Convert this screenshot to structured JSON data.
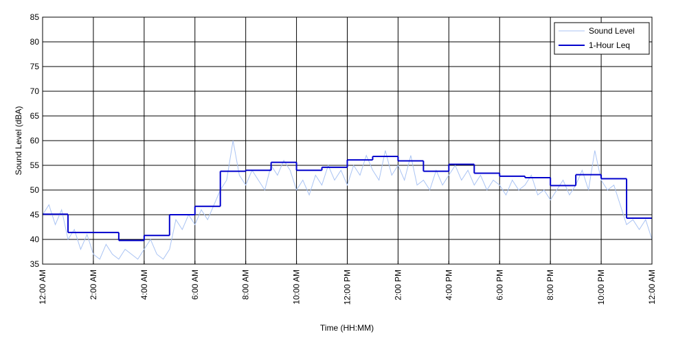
{
  "chart_data": {
    "type": "line",
    "xlabel": "Time (HH:MM)",
    "ylabel": "Sound Level (dBA)",
    "xlim": [
      0,
      24
    ],
    "ylim": [
      35,
      85
    ],
    "xticks": [
      {
        "value": 0,
        "label": "12:00 AM"
      },
      {
        "value": 2,
        "label": "2:00 AM"
      },
      {
        "value": 4,
        "label": "4:00 AM"
      },
      {
        "value": 6,
        "label": "6:00 AM"
      },
      {
        "value": 8,
        "label": "8:00 AM"
      },
      {
        "value": 10,
        "label": "10:00 AM"
      },
      {
        "value": 12,
        "label": "12:00 PM"
      },
      {
        "value": 14,
        "label": "2:00 PM"
      },
      {
        "value": 16,
        "label": "4:00 PM"
      },
      {
        "value": 18,
        "label": "6:00 PM"
      },
      {
        "value": 20,
        "label": "8:00 PM"
      },
      {
        "value": 22,
        "label": "10:00 PM"
      },
      {
        "value": 24,
        "label": "12:00 AM"
      }
    ],
    "yticks": [
      35,
      40,
      45,
      50,
      55,
      60,
      65,
      70,
      75,
      80,
      85
    ],
    "grid": true,
    "legend": "upper right",
    "series": [
      {
        "name": "Sound Level",
        "color": "#a9c3f3",
        "style": "line",
        "x": [
          0,
          0.25,
          0.5,
          0.75,
          1,
          1.25,
          1.5,
          1.75,
          2,
          2.25,
          2.5,
          2.75,
          3,
          3.25,
          3.5,
          3.75,
          4,
          4.25,
          4.5,
          4.75,
          5,
          5.25,
          5.5,
          5.75,
          6,
          6.25,
          6.5,
          6.75,
          7,
          7.25,
          7.5,
          7.75,
          8,
          8.25,
          8.5,
          8.75,
          9,
          9.25,
          9.5,
          9.75,
          10,
          10.25,
          10.5,
          10.75,
          11,
          11.25,
          11.5,
          11.75,
          12,
          12.25,
          12.5,
          12.75,
          13,
          13.25,
          13.5,
          13.75,
          14,
          14.25,
          14.5,
          14.75,
          15,
          15.25,
          15.5,
          15.75,
          16,
          16.25,
          16.5,
          16.75,
          17,
          17.25,
          17.5,
          17.75,
          18,
          18.25,
          18.5,
          18.75,
          19,
          19.25,
          19.5,
          19.75,
          20,
          20.25,
          20.5,
          20.75,
          21,
          21.25,
          21.5,
          21.75,
          22,
          22.25,
          22.5,
          22.75,
          23,
          23.25,
          23.5,
          23.75,
          24
        ],
        "values": [
          45,
          47,
          43,
          46,
          40,
          42,
          38,
          41,
          37,
          36,
          39,
          37,
          36,
          38,
          37,
          36,
          38,
          40,
          37,
          36,
          38,
          44,
          42,
          45,
          43,
          46,
          44,
          47,
          50,
          52,
          60,
          53,
          51,
          54,
          52,
          50,
          55,
          53,
          56,
          54,
          50,
          52,
          49,
          53,
          51,
          55,
          52,
          54,
          51,
          55,
          53,
          57,
          54,
          52,
          58,
          53,
          55,
          52,
          57,
          51,
          52,
          50,
          54,
          51,
          53,
          55,
          52,
          54,
          51,
          53,
          50,
          52,
          51,
          49,
          52,
          50,
          51,
          53,
          49,
          50,
          48,
          50,
          52,
          49,
          51,
          54,
          50,
          58,
          52,
          50,
          51,
          47,
          43,
          44,
          42,
          44,
          40
        ]
      },
      {
        "name": "1-Hour Leq",
        "color": "#0000cc",
        "style": "step",
        "x": [
          0,
          1,
          2,
          3,
          4,
          5,
          6,
          7,
          8,
          9,
          10,
          11,
          12,
          13,
          14,
          15,
          16,
          17,
          18,
          19,
          20,
          21,
          22,
          23
        ],
        "values": [
          45.1,
          41.4,
          41.4,
          39.8,
          40.8,
          45.0,
          46.7,
          53.8,
          54.0,
          55.6,
          54.0,
          54.6,
          56.1,
          56.8,
          55.9,
          53.8,
          55.2,
          53.4,
          52.8,
          52.5,
          50.9,
          53.1,
          52.3,
          44.3
        ]
      }
    ]
  }
}
